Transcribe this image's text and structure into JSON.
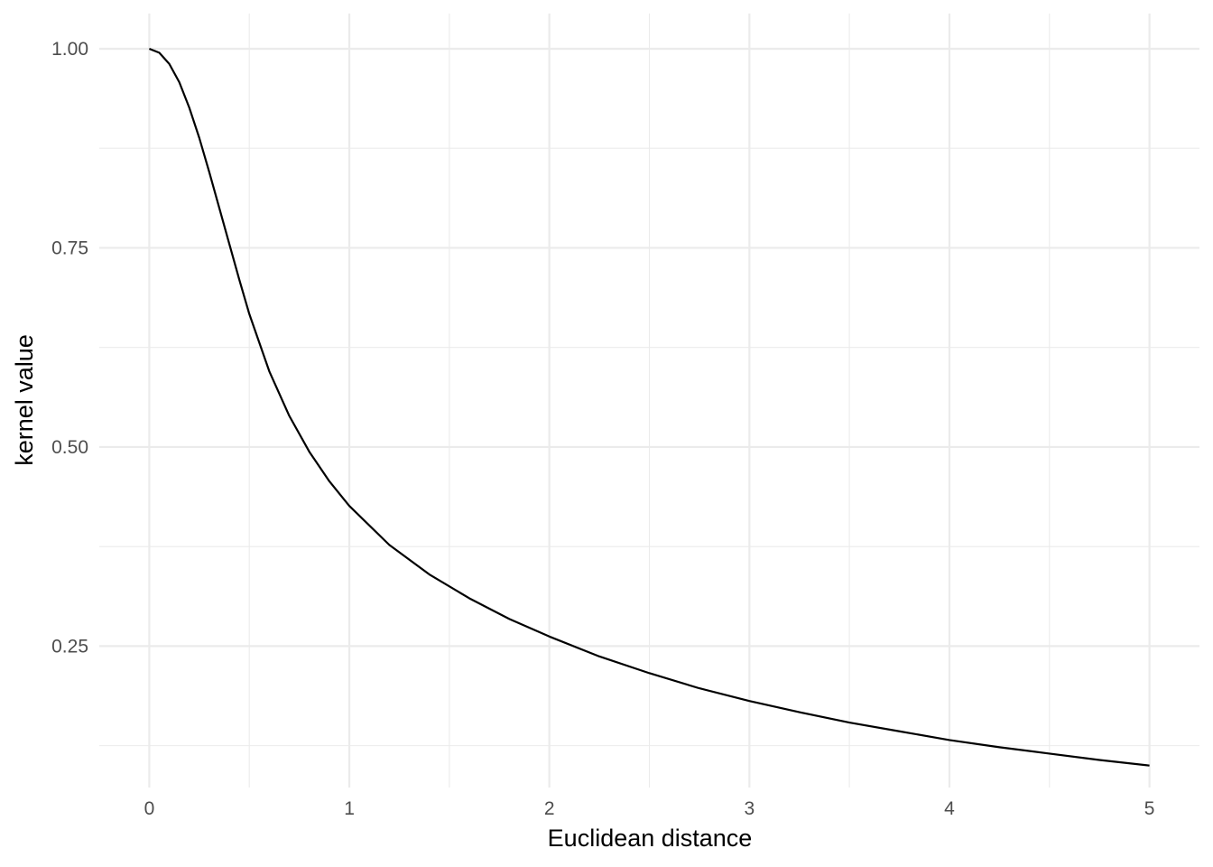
{
  "chart_data": {
    "type": "line",
    "title": "",
    "xlabel": "Euclidean distance",
    "ylabel": "kernel value",
    "xlim": [
      -0.25,
      5.25
    ],
    "ylim": [
      0.0724,
      1.0442
    ],
    "x_ticks": [
      0,
      1,
      2,
      3,
      4,
      5
    ],
    "x_tick_labels": [
      "0",
      "1",
      "2",
      "3",
      "4",
      "5"
    ],
    "y_ticks": [
      0.25,
      0.5,
      0.75,
      1.0
    ],
    "y_tick_labels": [
      "0.25",
      "0.50",
      "0.75",
      "1.00"
    ],
    "grid": true,
    "legend": "none",
    "line_color": "#000000",
    "grid_color": "#ebebeb",
    "series": [
      {
        "x": [
          0,
          0.05,
          0.1,
          0.15,
          0.2,
          0.25,
          0.3,
          0.35,
          0.4,
          0.45,
          0.5,
          0.6,
          0.7,
          0.8,
          0.9,
          1.0,
          1.2,
          1.4,
          1.6,
          1.8,
          2.0,
          2.25,
          2.5,
          2.75,
          3.0,
          3.25,
          3.5,
          3.75,
          4.0,
          4.25,
          4.5,
          4.75,
          5.0
        ],
        "y": [
          1.0,
          0.995,
          0.981,
          0.958,
          0.926,
          0.888,
          0.845,
          0.8,
          0.755,
          0.71,
          0.667,
          0.595,
          0.539,
          0.494,
          0.457,
          0.426,
          0.377,
          0.34,
          0.31,
          0.284,
          0.262,
          0.237,
          0.216,
          0.197,
          0.181,
          0.167,
          0.154,
          0.143,
          0.132,
          0.123,
          0.115,
          0.107,
          0.1
        ]
      }
    ]
  }
}
